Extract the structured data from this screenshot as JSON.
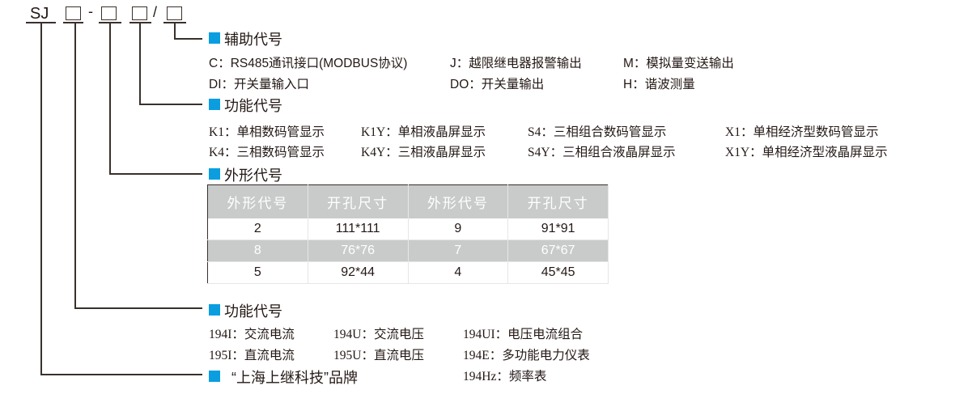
{
  "code": {
    "prefix": "SJ",
    "dash": "-",
    "slash": "/"
  },
  "sections": {
    "aux": {
      "title": "辅助代号",
      "items": [
        [
          "C：RS485通讯接口(MODBUS协议)",
          "J：越限继电器报警输出",
          "M：模拟量变送输出"
        ],
        [
          "DI：开关量输入口",
          "DO：开关量输出",
          "H：谐波测量"
        ]
      ]
    },
    "display": {
      "title": "功能代号",
      "items": [
        [
          "K1：单相数码管显示",
          "K1Y：单相液晶屏显示",
          "S4：三相组合数码管显示",
          "X1：单相经济型数码管显示"
        ],
        [
          "K4：三相数码管显示",
          "K4Y：三相液晶屏显示",
          "S4Y：三相组合液晶屏显示",
          "X1Y：单相经济型液晶屏显示"
        ]
      ]
    },
    "shape": {
      "title": "外形代号",
      "headers": [
        "外形代号",
        "开孔尺寸",
        "外形代号",
        "开孔尺寸"
      ],
      "rows": [
        [
          "2",
          "111*111",
          "9",
          "91*91"
        ],
        [
          "8",
          "76*76",
          "7",
          "67*67"
        ],
        [
          "5",
          "92*44",
          "4",
          "45*45"
        ]
      ]
    },
    "func": {
      "title": "功能代号",
      "items": [
        [
          "194I：交流电流",
          "194U：交流电压",
          "194UI：电压电流组合"
        ],
        [
          "195I：直流电流",
          "195U：直流电压",
          "194E：多功能电力仪表"
        ],
        [
          "",
          "",
          "194Hz：频率表"
        ]
      ]
    },
    "brand": {
      "title": "“上海上继科技”品牌"
    }
  },
  "colors": {
    "accent": "#0a9ee0",
    "table_gray": "#c9caca"
  }
}
